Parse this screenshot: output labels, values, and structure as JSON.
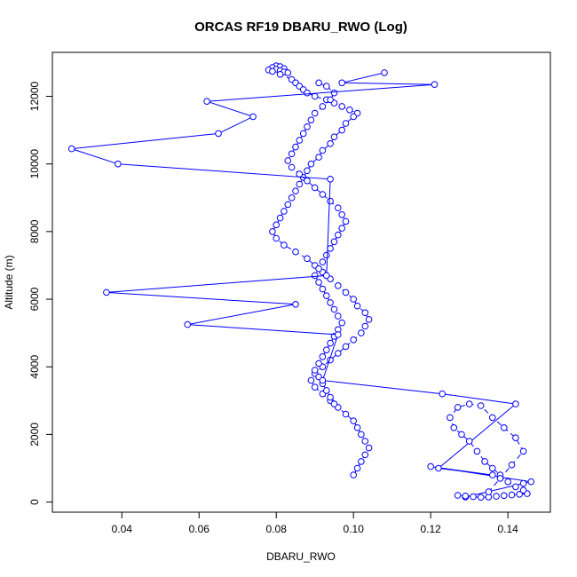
{
  "chart_data": {
    "type": "line",
    "title": "ORCAS RF19 DBARU_RWO (Log)",
    "xlabel": "DBARU_RWO",
    "ylabel": "Altitude (m)",
    "xlim": [
      0.022,
      0.151
    ],
    "ylim": [
      -300,
      13300
    ],
    "x_ticks": [
      0.04,
      0.06,
      0.08,
      0.1,
      0.12,
      0.14
    ],
    "x_tick_labels": [
      "0.04",
      "0.06",
      "0.08",
      "0.10",
      "0.12",
      "0.14"
    ],
    "y_ticks": [
      0,
      2000,
      4000,
      6000,
      8000,
      10000,
      12000
    ],
    "y_tick_labels": [
      "0",
      "2000",
      "4000",
      "6000",
      "8000",
      "10000",
      "12000"
    ],
    "grid": false,
    "colors": {
      "series": "#0000ff",
      "axis": "#000000"
    },
    "series": [
      {
        "line_style": "dashed",
        "x": [
          0.08,
          0.081,
          0.079,
          0.082,
          0.08,
          0.078,
          0.081,
          0.079,
          0.082,
          0.083,
          0.081,
          0.084,
          0.085,
          0.086,
          0.087,
          0.088,
          0.09,
          0.093,
          0.095,
          0.097,
          0.099,
          0.101,
          0.1,
          0.098,
          0.097,
          0.095,
          0.094,
          0.092,
          0.091,
          0.089,
          0.088,
          0.087,
          0.086,
          0.085,
          0.084,
          0.083,
          0.082,
          0.081,
          0.08,
          0.079,
          0.08,
          0.082,
          0.085,
          0.088,
          0.09,
          0.092,
          0.094,
          0.096,
          0.098,
          0.1,
          0.101,
          0.103,
          0.104,
          0.103,
          0.102,
          0.1,
          0.098,
          0.096,
          0.094,
          0.092,
          0.09,
          0.089,
          0.09,
          0.092,
          0.094,
          0.096,
          0.098,
          0.1,
          0.101,
          0.102,
          0.103,
          0.104,
          0.103,
          0.102,
          0.101,
          0.1
        ],
        "y": [
          12900,
          12880,
          12850,
          12820,
          12800,
          12780,
          12760,
          12740,
          12720,
          12700,
          12650,
          12500,
          12400,
          12300,
          12200,
          12100,
          12000,
          11900,
          11800,
          11700,
          11600,
          11500,
          11400,
          11200,
          11000,
          10800,
          10600,
          10400,
          10200,
          10000,
          9800,
          9600,
          9400,
          9200,
          9000,
          8800,
          8600,
          8400,
          8200,
          8000,
          7800,
          7600,
          7400,
          7200,
          7000,
          6800,
          6600,
          6400,
          6200,
          6000,
          5800,
          5600,
          5400,
          5200,
          5000,
          4800,
          4600,
          4400,
          4200,
          4000,
          3800,
          3600,
          3400,
          3200,
          3000,
          2800,
          2600,
          2400,
          2200,
          2000,
          1800,
          1600,
          1400,
          1200,
          1000,
          800
        ]
      },
      {
        "line_style": "dashed",
        "x": [
          0.091,
          0.093,
          0.095,
          0.094,
          0.092,
          0.09,
          0.089,
          0.088,
          0.087,
          0.086,
          0.085,
          0.084,
          0.083,
          0.084,
          0.086,
          0.088,
          0.09,
          0.092,
          0.094,
          0.096,
          0.097,
          0.098,
          0.097,
          0.096,
          0.095,
          0.094,
          0.093,
          0.092,
          0.091,
          0.09,
          0.091,
          0.092,
          0.093,
          0.094,
          0.095,
          0.096,
          0.097,
          0.096,
          0.095,
          0.094,
          0.093,
          0.092,
          0.091,
          0.09,
          0.091,
          0.092,
          0.093,
          0.094,
          0.095
        ],
        "y": [
          12400,
          12300,
          12100,
          11900,
          11700,
          11500,
          11300,
          11100,
          10900,
          10700,
          10500,
          10300,
          10100,
          9900,
          9700,
          9500,
          9300,
          9100,
          8900,
          8700,
          8500,
          8300,
          8100,
          7900,
          7700,
          7500,
          7300,
          7100,
          6900,
          6700,
          6500,
          6300,
          6100,
          5900,
          5700,
          5500,
          5300,
          5100,
          4900,
          4700,
          4500,
          4300,
          4100,
          3900,
          3700,
          3500,
          3300,
          3100,
          2900
        ]
      },
      {
        "line_style": "solid",
        "x": [
          0.108,
          0.097,
          0.121,
          0.062,
          0.074,
          0.065,
          0.027,
          0.039,
          0.094,
          0.093,
          0.036,
          0.085,
          0.057,
          0.096,
          0.092,
          0.123,
          0.142,
          0.122,
          0.136,
          0.12,
          0.146,
          0.144,
          0.129
        ],
        "y": [
          12700,
          12400,
          12350,
          11850,
          11400,
          10900,
          10450,
          10000,
          9550,
          6700,
          6200,
          5850,
          5250,
          4950,
          3600,
          3200,
          2900,
          1000,
          800,
          1050,
          600,
          550,
          150
        ]
      },
      {
        "line_style": "dashed",
        "x": [
          0.127,
          0.129,
          0.131,
          0.133,
          0.135,
          0.137,
          0.139,
          0.141,
          0.143,
          0.145,
          0.144,
          0.142,
          0.14,
          0.138,
          0.136,
          0.134,
          0.132,
          0.13,
          0.128,
          0.126,
          0.125,
          0.127,
          0.13,
          0.133,
          0.136,
          0.139,
          0.142,
          0.144,
          0.141,
          0.138,
          0.135
        ],
        "y": [
          200,
          180,
          160,
          140,
          150,
          170,
          190,
          210,
          230,
          250,
          350,
          450,
          600,
          800,
          1000,
          1200,
          1500,
          1800,
          2000,
          2200,
          2500,
          2800,
          2900,
          2850,
          2500,
          2200,
          1900,
          1500,
          1100,
          700,
          300
        ]
      }
    ]
  }
}
